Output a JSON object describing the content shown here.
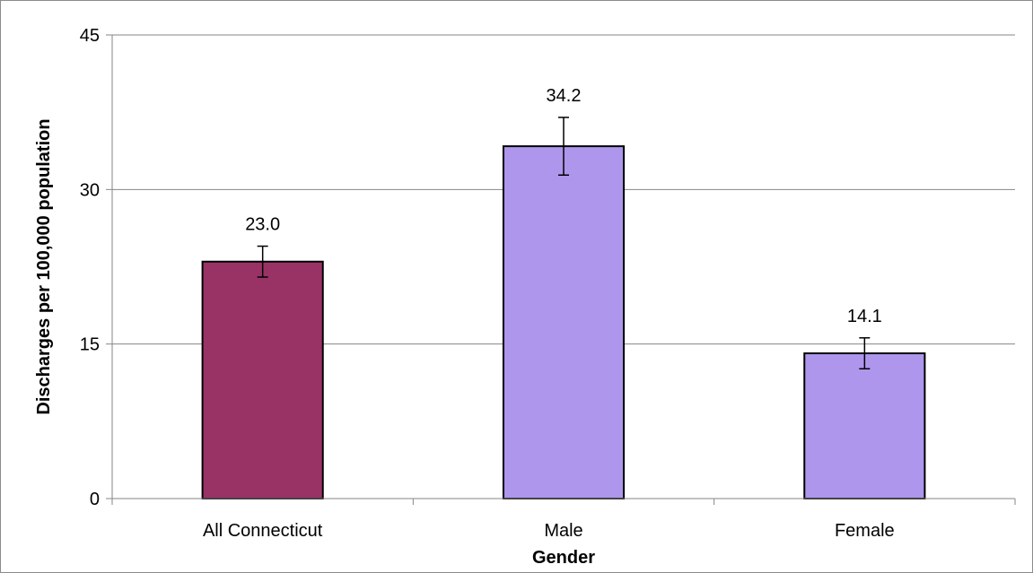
{
  "chart_data": {
    "type": "bar",
    "title": "",
    "xlabel": "Gender",
    "ylabel": "Discharges per 100,000 population",
    "categories": [
      "All Connecticut",
      "Male",
      "Female"
    ],
    "values": [
      23.0,
      34.2,
      14.1
    ],
    "value_labels": [
      "23.0",
      "34.2",
      "14.1"
    ],
    "error_bars": [
      {
        "low": 21.5,
        "high": 24.5
      },
      {
        "low": 31.4,
        "high": 37.0
      },
      {
        "low": 12.6,
        "high": 15.6
      }
    ],
    "bar_colors": [
      "#993366",
      "#ad96ec",
      "#ad96ec"
    ],
    "ylim": [
      0,
      45
    ],
    "yticks": [
      0,
      15,
      30,
      45
    ],
    "ytick_labels": [
      "0",
      "15",
      "30",
      "45"
    ],
    "grid": true,
    "legend": "none"
  }
}
